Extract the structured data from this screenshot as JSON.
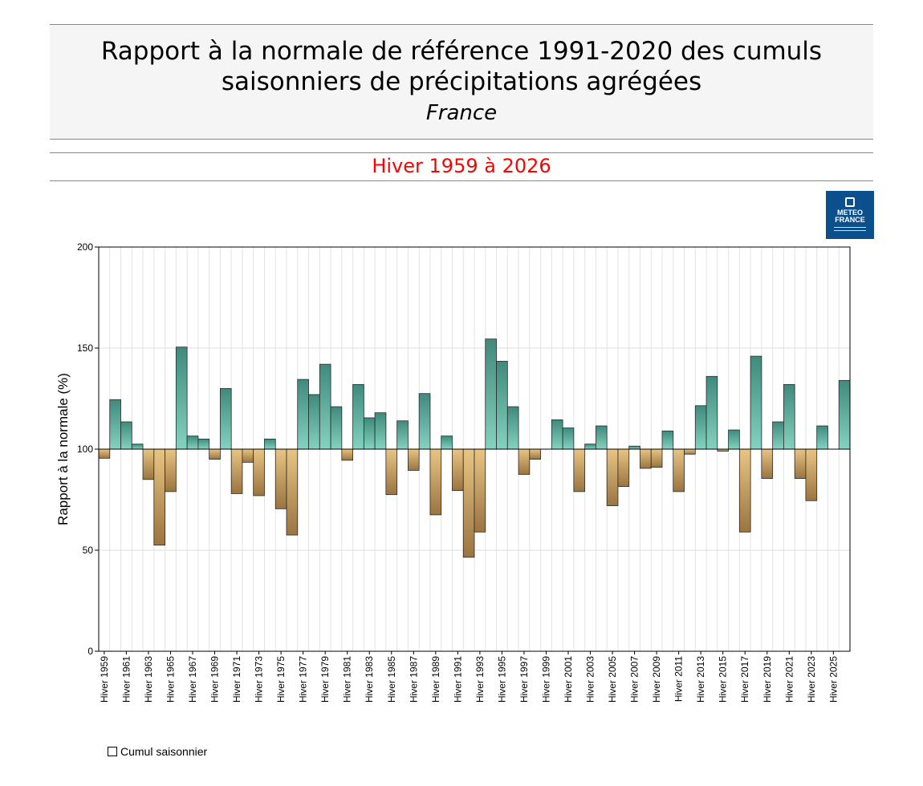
{
  "header": {
    "title_line1": "Rapport à la normale de référence 1991-2020 des cumuls",
    "title_line2": "saisonniers de précipitations agrégées",
    "subtitle": "France",
    "period": "Hiver 1959 à 2026"
  },
  "logo": {
    "line1": "METEO",
    "line2": "FRANCE",
    "icon": "meteo-france-logo"
  },
  "legend": {
    "label": "Cumul saisonnier"
  },
  "colors": {
    "above_light": "#84d2c0",
    "above_dark": "#3f8a7c",
    "below_light": "#e8c583",
    "below_dark": "#9b7440",
    "period_text": "#ff0000",
    "logo_bg": "#0b4f8c"
  },
  "chart_data": {
    "type": "bar",
    "ylabel": "Rapport à la normale (%)",
    "ylim": [
      0,
      200
    ],
    "yticks": [
      0,
      50,
      100,
      150,
      200
    ],
    "baseline": 100,
    "grid": true,
    "categories": [
      "Hiver 1959",
      "Hiver 1960",
      "Hiver 1961",
      "Hiver 1962",
      "Hiver 1963",
      "Hiver 1964",
      "Hiver 1965",
      "Hiver 1966",
      "Hiver 1967",
      "Hiver 1968",
      "Hiver 1969",
      "Hiver 1970",
      "Hiver 1971",
      "Hiver 1972",
      "Hiver 1973",
      "Hiver 1974",
      "Hiver 1975",
      "Hiver 1976",
      "Hiver 1977",
      "Hiver 1978",
      "Hiver 1979",
      "Hiver 1980",
      "Hiver 1981",
      "Hiver 1982",
      "Hiver 1983",
      "Hiver 1984",
      "Hiver 1985",
      "Hiver 1986",
      "Hiver 1987",
      "Hiver 1988",
      "Hiver 1989",
      "Hiver 1990",
      "Hiver 1991",
      "Hiver 1992",
      "Hiver 1993",
      "Hiver 1994",
      "Hiver 1995",
      "Hiver 1996",
      "Hiver 1997",
      "Hiver 1998",
      "Hiver 1999",
      "Hiver 2000",
      "Hiver 2001",
      "Hiver 2002",
      "Hiver 2003",
      "Hiver 2004",
      "Hiver 2005",
      "Hiver 2006",
      "Hiver 2007",
      "Hiver 2008",
      "Hiver 2009",
      "Hiver 2010",
      "Hiver 2011",
      "Hiver 2012",
      "Hiver 2013",
      "Hiver 2014",
      "Hiver 2015",
      "Hiver 2016",
      "Hiver 2017",
      "Hiver 2018",
      "Hiver 2019",
      "Hiver 2020",
      "Hiver 2021",
      "Hiver 2022",
      "Hiver 2023",
      "Hiver 2024",
      "Hiver 2025",
      "Hiver 2026"
    ],
    "tick_labels": [
      "Hiver 1959",
      "Hiver 1961",
      "Hiver 1963",
      "Hiver 1965",
      "Hiver 1967",
      "Hiver 1969",
      "Hiver 1971",
      "Hiver 1973",
      "Hiver 1975",
      "Hiver 1977",
      "Hiver 1979",
      "Hiver 1981",
      "Hiver 1983",
      "Hiver 1985",
      "Hiver 1987",
      "Hiver 1989",
      "Hiver 1991",
      "Hiver 1993",
      "Hiver 1995",
      "Hiver 1997",
      "Hiver 1999",
      "Hiver 2001",
      "Hiver 2003",
      "Hiver 2005",
      "Hiver 2007",
      "Hiver 2009",
      "Hiver 2011",
      "Hiver 2013",
      "Hiver 2015",
      "Hiver 2017",
      "Hiver 2019",
      "Hiver 2021",
      "Hiver 2023",
      "Hiver 2025"
    ],
    "values": [
      95.5,
      124.5,
      113.5,
      102.5,
      85,
      52.5,
      79,
      150.5,
      106.5,
      105,
      95,
      130,
      78,
      93.5,
      77,
      105,
      70.5,
      57.5,
      134.5,
      127,
      142,
      121,
      94.5,
      132,
      115.5,
      118,
      77.5,
      114,
      89.5,
      127.5,
      67.5,
      106.5,
      79.5,
      46.5,
      59,
      154.5,
      143.5,
      121,
      87.5,
      95,
      null,
      114.5,
      110.5,
      79,
      102.5,
      111.5,
      72,
      81.5,
      101.5,
      90.5,
      91,
      109,
      79,
      97.5,
      121.5,
      136,
      99,
      109.5,
      59,
      146,
      85.5,
      113.5,
      132,
      85.5,
      74.5,
      111.5,
      null,
      134
    ]
  }
}
